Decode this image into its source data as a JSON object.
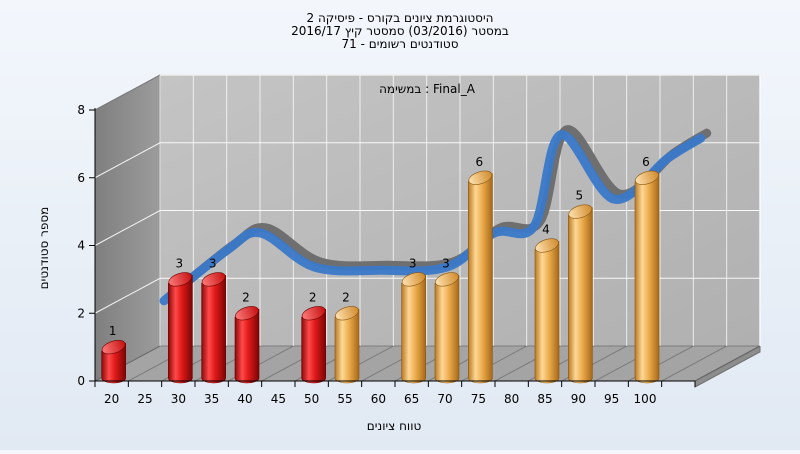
{
  "chart_data": {
    "type": "bar",
    "title": [
      "היסטוגרמת ציונים בקורס - פיסיקה 2",
      "במסטר (03/2016) סמסטר קיץ 2016/17",
      "סטודנטים רשומים - 71"
    ],
    "legend": "Final_A : במשימה",
    "xlabel": "טווח ציונים",
    "ylabel": "מספר סטודנטים",
    "ylim": [
      0,
      8
    ],
    "yticks": [
      0,
      2,
      4,
      6,
      8
    ],
    "xticks": [
      20,
      25,
      30,
      35,
      40,
      45,
      50,
      55,
      60,
      65,
      70,
      75,
      80,
      85,
      90,
      95,
      100
    ],
    "bars": [
      {
        "x": 20,
        "value": 1,
        "color": "red"
      },
      {
        "x": 30,
        "value": 3,
        "color": "red"
      },
      {
        "x": 35,
        "value": 3,
        "color": "red"
      },
      {
        "x": 40,
        "value": 2,
        "color": "red"
      },
      {
        "x": 50,
        "value": 2,
        "color": "red"
      },
      {
        "x": 55,
        "value": 2,
        "color": "orange"
      },
      {
        "x": 65,
        "value": 3,
        "color": "orange"
      },
      {
        "x": 70,
        "value": 3,
        "color": "orange"
      },
      {
        "x": 75,
        "value": 6,
        "color": "orange"
      },
      {
        "x": 85,
        "value": 4,
        "color": "orange"
      },
      {
        "x": 90,
        "value": 5,
        "color": "orange"
      },
      {
        "x": 100,
        "value": 6,
        "color": "orange"
      }
    ],
    "curve": [
      {
        "x": 22.5,
        "y": 1.8
      },
      {
        "x": 32,
        "y": 3.3
      },
      {
        "x": 37,
        "y": 3.8
      },
      {
        "x": 45,
        "y": 2.8
      },
      {
        "x": 55,
        "y": 2.7
      },
      {
        "x": 65,
        "y": 2.8
      },
      {
        "x": 72,
        "y": 3.8
      },
      {
        "x": 78,
        "y": 4.0
      },
      {
        "x": 82,
        "y": 6.7
      },
      {
        "x": 90,
        "y": 4.8
      },
      {
        "x": 98,
        "y": 6.0
      },
      {
        "x": 103,
        "y": 6.6
      }
    ],
    "colors": {
      "red": "#e21a1a",
      "orange": "#e9a94a",
      "curve_front": "#3a78c9",
      "curve_back": "#6f6f6f",
      "wall": "#b5b5b5",
      "floor": "#a4a4a4"
    },
    "grid": true
  }
}
